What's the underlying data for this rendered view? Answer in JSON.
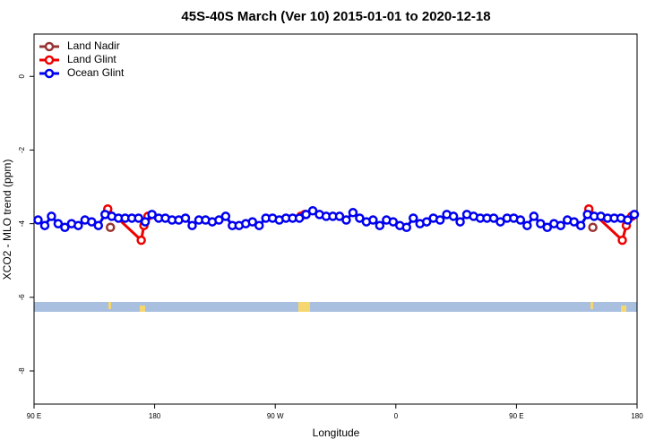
{
  "chart_data": {
    "type": "line",
    "title": "45S-40S March (Ver 10)   2015-01-01 to 2020-12-18",
    "x_label": "Longitude",
    "y_label": "XCO2 - MLO trend (ppm)",
    "xlim": [
      90,
      540
    ],
    "xticks": [
      {
        "value": 90,
        "label": "90 E"
      },
      {
        "value": 180,
        "label": "180"
      },
      {
        "value": 270,
        "label": "90 W"
      },
      {
        "value": 360,
        "label": "0"
      },
      {
        "value": 450,
        "label": "90 E"
      },
      {
        "value": 540,
        "label": "180"
      }
    ],
    "ylim": [
      -8.9,
      1.15
    ],
    "yticks": [
      0,
      -2,
      -4,
      -6,
      -8
    ],
    "legend": "top-left",
    "series": [
      {
        "name": "Land Nadir",
        "color": "#993333",
        "x": [
          147,
          null,
          507
        ],
        "values": [
          -4.1,
          null,
          -4.1
        ]
      },
      {
        "name": "Land Glint",
        "color": "#ee0000",
        "x": [
          145,
          170,
          172,
          175,
          null,
          289,
          292,
          null,
          504,
          529,
          532,
          536
        ],
        "values": [
          -3.6,
          -4.45,
          -4.05,
          -3.8,
          null,
          -3.8,
          -3.75,
          null,
          -3.6,
          -4.45,
          -4.05,
          -3.8
        ]
      },
      {
        "name": "Ocean Glint",
        "color": "#0000ee",
        "x": [
          93,
          98,
          103,
          108,
          113,
          118,
          123,
          128,
          133,
          138,
          143,
          148,
          153,
          158,
          163,
          168,
          173,
          178,
          183,
          188,
          193,
          198,
          203,
          208,
          213,
          218,
          223,
          228,
          233,
          238,
          243,
          248,
          253,
          258,
          263,
          268,
          273,
          278,
          283,
          288,
          293,
          298,
          303,
          308,
          313,
          318,
          323,
          328,
          333,
          338,
          343,
          348,
          353,
          358,
          363,
          368,
          373,
          378,
          383,
          388,
          393,
          398,
          403,
          408,
          413,
          418,
          423,
          428,
          433,
          438,
          443,
          448,
          453,
          458,
          463,
          468,
          473,
          478,
          483,
          488,
          493,
          498,
          503,
          508,
          513,
          518,
          523,
          528,
          533,
          538
        ],
        "values": [
          -3.9,
          -4.05,
          -3.8,
          -4.0,
          -4.1,
          -4.0,
          -4.05,
          -3.9,
          -3.95,
          -4.05,
          -3.75,
          -3.8,
          -3.85,
          -3.85,
          -3.85,
          -3.85,
          -3.95,
          -3.75,
          -3.85,
          -3.85,
          -3.9,
          -3.9,
          -3.85,
          -4.05,
          -3.9,
          -3.9,
          -3.95,
          -3.9,
          -3.8,
          -4.05,
          -4.05,
          -4.0,
          -3.95,
          -4.05,
          -3.85,
          -3.85,
          -3.9,
          -3.85,
          -3.85,
          -3.85,
          -3.75,
          -3.65,
          -3.75,
          -3.8,
          -3.8,
          -3.8,
          -3.9,
          -3.7,
          -3.85,
          -3.95,
          -3.9,
          -4.05,
          -3.9,
          -3.95,
          -4.05,
          -4.1,
          -3.85,
          -4.0,
          -3.95,
          -3.85,
          -3.9,
          -3.75,
          -3.8,
          -3.95,
          -3.75,
          -3.8,
          -3.85,
          -3.85,
          -3.85,
          -3.95,
          -3.85,
          -3.85,
          -3.9,
          -4.05,
          -3.8,
          -4.0,
          -4.1,
          -4.0,
          -4.05,
          -3.9,
          -3.95,
          -4.05,
          -3.75,
          -3.8,
          -3.8,
          -3.85,
          -3.85,
          -3.85,
          -3.9,
          -3.75
        ]
      }
    ]
  }
}
